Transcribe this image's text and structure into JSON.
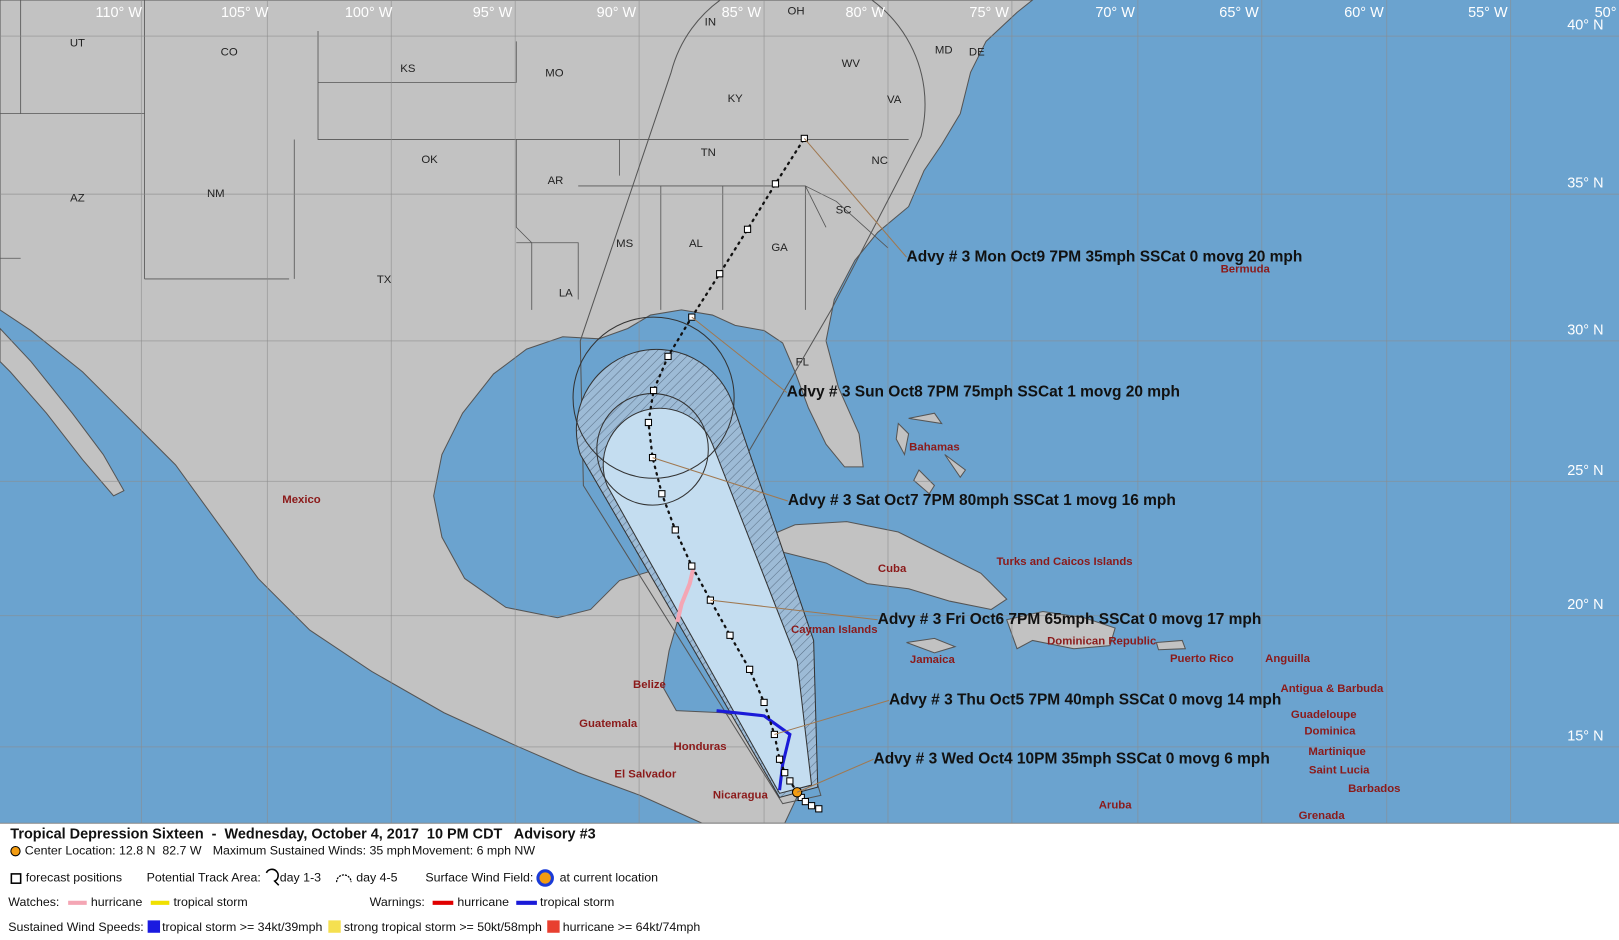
{
  "map": {
    "longitude_labels": [
      "110° W",
      "105° W",
      "100° W",
      "95° W",
      "90° W",
      "85° W",
      "80° W",
      "75° W",
      "70° W",
      "65° W",
      "60° W",
      "55° W",
      "50°"
    ],
    "latitude_labels": [
      "40° N",
      "35° N",
      "30° N",
      "25° N",
      "20° N",
      "15° N"
    ],
    "state_labels": [
      "UT",
      "CO",
      "KS",
      "MO",
      "IN",
      "OH",
      "MD",
      "DE",
      "WV",
      "KY",
      "VA",
      "OK",
      "TN",
      "NC",
      "AR",
      "AZ",
      "NM",
      "SC",
      "MS",
      "AL",
      "GA",
      "TX",
      "LA",
      "FL"
    ],
    "place_labels": [
      "Mexico",
      "Bermuda",
      "Bahamas",
      "Cuba",
      "Turks and Caicos Islands",
      "Cayman Islands",
      "Jamaica",
      "Dominican Republic",
      "Puerto Rico",
      "Anguilla",
      "Antigua & Barbuda",
      "Guadeloupe",
      "Dominica",
      "Martinique",
      "Saint Lucia",
      "Barbados",
      "Grenada",
      "Belize",
      "Guatemala",
      "Honduras",
      "El Salvador",
      "Nicaragua",
      "Aruba"
    ],
    "advisories": [
      "Advy # 3 Mon Oct9 7PM  35mph SSCat 0 movg 20 mph",
      "Advy # 3 Sun Oct8 7PM  75mph SSCat 1 movg 20 mph",
      "Advy # 3 Sat Oct7 7PM  80mph SSCat 1 movg 16 mph",
      "Advy # 3 Fri Oct6 7PM  65mph SSCat 0 movg 17 mph",
      "Advy # 3 Thu Oct5 7PM  40mph SSCat 0 movg 14 mph",
      "Advy # 3 Wed Oct4 10PM  35mph SSCat 0 movg 6 mph"
    ]
  },
  "legend": {
    "title": "Tropical Depression Sixteen  -  Wednesday, October 4, 2017  10 PM CDT   Advisory #3",
    "center_location": "Center Location: 12.8 N  82.7 W",
    "max_winds": "Maximum Sustained Winds: 35 mph",
    "movement": "Movement: 6 mph NW",
    "forecast_positions": "forecast positions",
    "track_area_label": "Potential Track Area:",
    "day_1_3": "day 1-3",
    "day_4_5": "day 4-5",
    "wind_field_label": "Surface Wind Field:",
    "current_location": "at current location",
    "watches_label": "Watches:",
    "watch_items": [
      "hurricane",
      "tropical storm"
    ],
    "warnings_label": "Warnings:",
    "warning_items": [
      "hurricane",
      "tropical storm"
    ],
    "wind_speeds_label": "Sustained Wind Speeds:",
    "wind_items": [
      "tropical storm >= 34kt/39mph",
      "strong tropical storm >= 50kt/58mph",
      "hurricane >= 64kt/74mph"
    ]
  }
}
